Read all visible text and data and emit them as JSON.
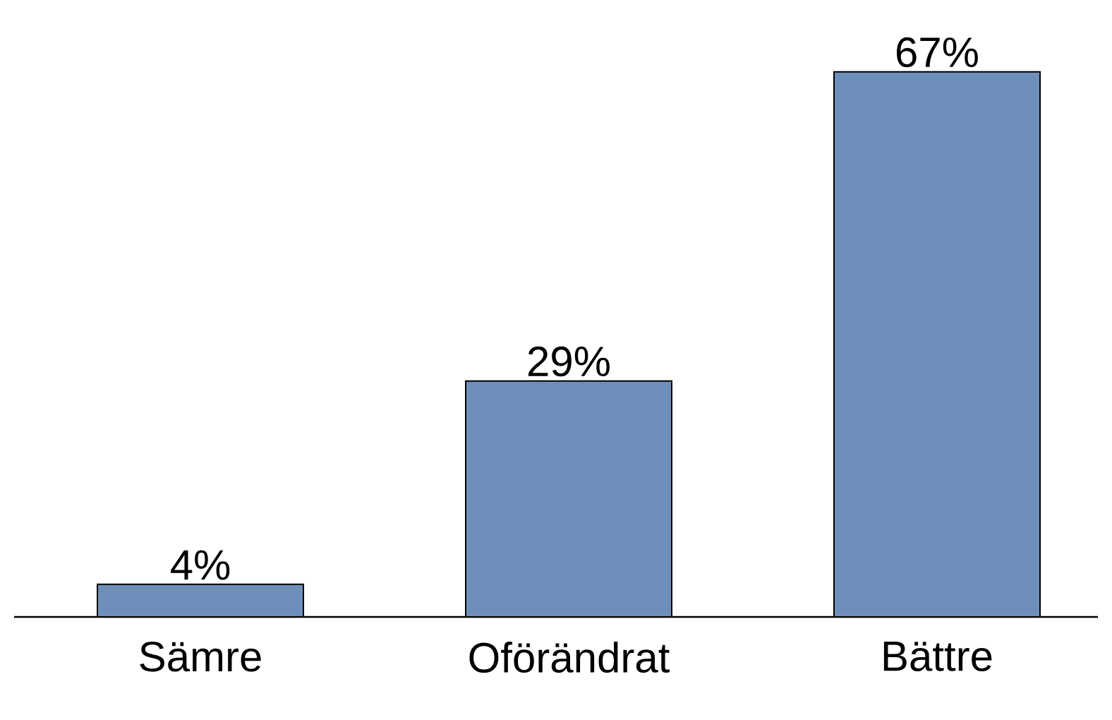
{
  "chart_data": {
    "type": "bar",
    "categories": [
      "Sämre",
      "Oförändrat",
      "Bättre"
    ],
    "values": [
      4,
      29,
      67
    ],
    "value_labels": [
      "4%",
      "29%",
      "67%"
    ],
    "color": "#6e8fba"
  }
}
